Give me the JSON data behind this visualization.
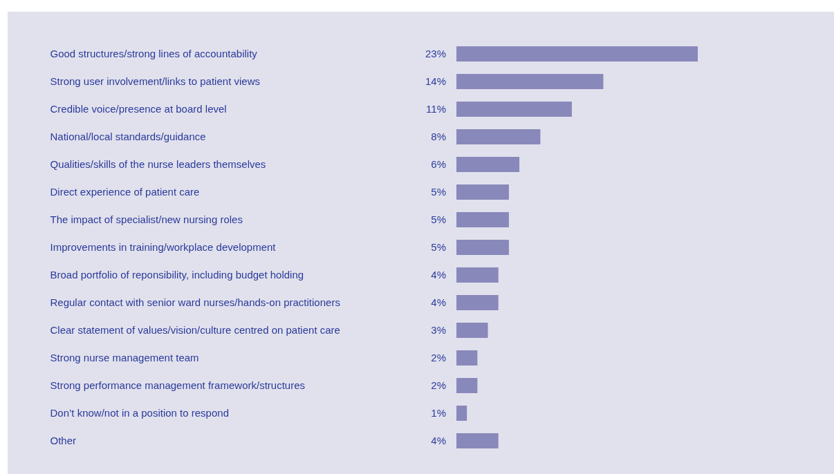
{
  "chart_data": {
    "type": "bar",
    "orientation": "horizontal",
    "categories": [
      "Good structures/strong lines of accountability",
      "Strong user involvement/links to patient views",
      "Credible voice/presence at board level",
      "National/local standards/guidance",
      "Qualities/skills of the nurse leaders themselves",
      "Direct experience of patient care",
      "The impact of specialist/new nursing roles",
      "Improvements in training/workplace development",
      "Broad portfolio of reponsibility, including budget holding",
      "Regular contact with senior ward nurses/hands-on practitioners",
      "Clear statement of values/vision/culture centred on patient care",
      "Strong nurse management team",
      "Strong performance management framework/structures",
      "Don’t know/not in a position to respond",
      "Other"
    ],
    "values": [
      23,
      14,
      11,
      8,
      6,
      5,
      5,
      5,
      4,
      4,
      3,
      2,
      2,
      1,
      4
    ],
    "value_labels": [
      "23%",
      "14%",
      "11%",
      "8%",
      "6%",
      "5%",
      "5%",
      "5%",
      "4%",
      "4%",
      "3%",
      "2%",
      "2%",
      "1%",
      "4%"
    ],
    "color": "#8888bb"
  }
}
